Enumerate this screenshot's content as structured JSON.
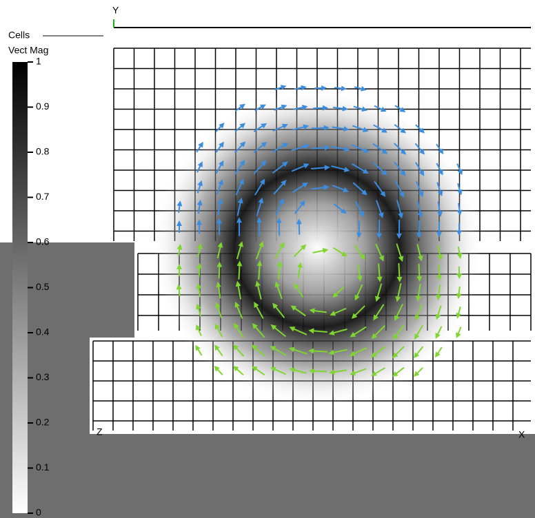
{
  "plot": {
    "mesh_label": "Cells",
    "axes": {
      "y": "Y",
      "x": "X",
      "z": "Z"
    }
  },
  "legend": {
    "title": "Vect Mag",
    "ticks": [
      1,
      0.9,
      0.8,
      0.7,
      0.6,
      0.5,
      0.4,
      0.3,
      0.2,
      0.1,
      0
    ]
  }
}
